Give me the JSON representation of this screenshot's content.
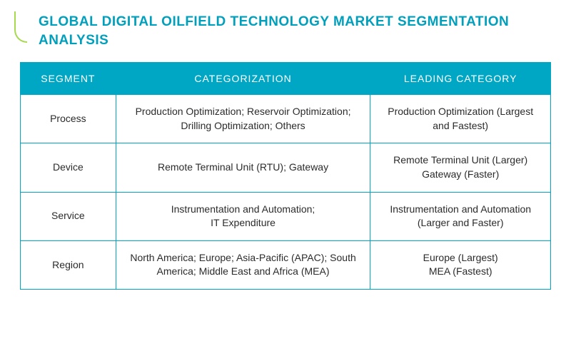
{
  "title": "GLOBAL DIGITAL OILFIELD TECHNOLOGY MARKET SEGMENTATION ANALYSIS",
  "table": {
    "headers": [
      "SEGMENT",
      "CATEGORIZATION",
      "LEADING CATEGORY"
    ],
    "header_bg": "#00a7c4",
    "header_color": "#ffffff",
    "border_color": "#00a7c4",
    "cell_color": "#2b2b2b",
    "accent_line": "#a7d94f",
    "title_color": "#009fbc",
    "col_widths": [
      "18%",
      "48%",
      "34%"
    ],
    "rows": [
      {
        "segment": "Process",
        "categorization": "Production Optimization; Reservoir Optimization; Drilling Optimization; Others",
        "leading": "Production Optimization (Largest and Fastest)"
      },
      {
        "segment": "Device",
        "categorization": "Remote Terminal Unit (RTU); Gateway",
        "leading": "Remote Terminal Unit (Larger)\nGateway (Faster)"
      },
      {
        "segment": "Service",
        "categorization": "Instrumentation and Automation;\nIT Expenditure",
        "leading": "Instrumentation and Automation (Larger and Faster)"
      },
      {
        "segment": "Region",
        "categorization": "North America; Europe; Asia-Pacific (APAC); South America; Middle East and Africa (MEA)",
        "leading": "Europe (Largest)\nMEA (Fastest)"
      }
    ]
  }
}
